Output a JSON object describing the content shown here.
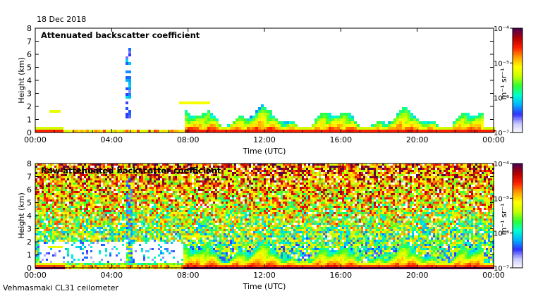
{
  "date_label": "18 Dec 2018",
  "footer_label": "Vehmasmaki CL31 ceilometer",
  "chart_data": [
    {
      "type": "heatmap",
      "title": "Attenuated backscatter coefficient",
      "xlabel": "Time (UTC)",
      "ylabel": "Height (km)",
      "xticks": [
        "00:00",
        "04:00",
        "08:00",
        "12:00",
        "16:00",
        "20:00",
        "00:00"
      ],
      "yticks": [
        "0",
        "1",
        "2",
        "3",
        "4",
        "5",
        "6",
        "7",
        "8"
      ],
      "xlim_hours": [
        0,
        24
      ],
      "ylim_km": [
        0,
        8
      ],
      "colorbar": {
        "label": "m⁻¹ sr⁻¹",
        "tick_labels": [
          "10⁻⁴",
          "10⁻⁵",
          "10⁻⁶",
          "10⁻⁷"
        ],
        "log10_range": [
          -7,
          -4
        ]
      },
      "noise_filtered": true
    },
    {
      "type": "heatmap",
      "title": "Raw attenuated backscatter coefficient",
      "xlabel": "Time (UTC)",
      "ylabel": "Height (km)",
      "xticks": [
        "00:00",
        "04:00",
        "08:00",
        "12:00",
        "16:00",
        "20:00",
        "00:00"
      ],
      "yticks": [
        "0",
        "1",
        "2",
        "3",
        "4",
        "5",
        "6",
        "7",
        "8"
      ],
      "xlim_hours": [
        0,
        24
      ],
      "ylim_km": [
        0,
        8
      ],
      "colorbar": {
        "label": "m⁻¹ sr⁻¹",
        "tick_labels": [
          "10⁻⁴",
          "10⁻⁵",
          "10⁻⁶",
          "10⁻⁷"
        ],
        "log10_range": [
          -7,
          -4
        ]
      },
      "noise_filtered": false
    }
  ],
  "colormap": [
    "#ffffff",
    "#c8c8ff",
    "#3030ff",
    "#00b4ff",
    "#00ffd0",
    "#30ff30",
    "#c8ff00",
    "#ffff00",
    "#ffa000",
    "#ff2000",
    "#b40000",
    "#500050"
  ]
}
